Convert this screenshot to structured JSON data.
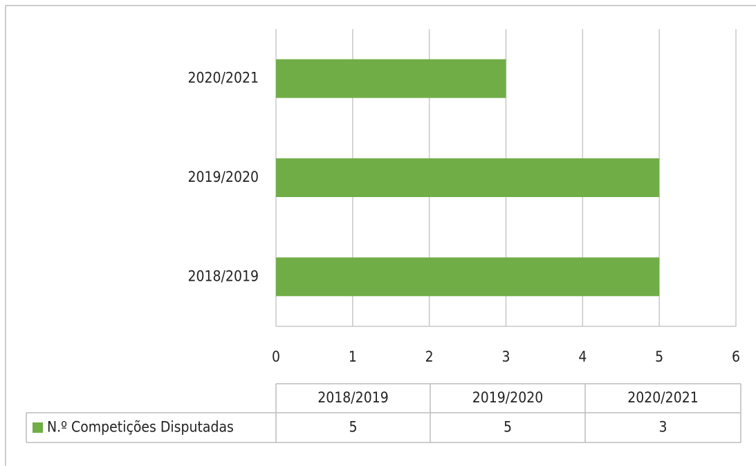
{
  "chart_data": {
    "type": "bar",
    "orientation": "horizontal",
    "categories": [
      "2018/2019",
      "2019/2020",
      "2020/2021"
    ],
    "series": [
      {
        "name": "N.º Competições Disputadas",
        "color": "#70ad47",
        "values": [
          5,
          5,
          3
        ]
      }
    ],
    "xlim": [
      0,
      6
    ],
    "xticks": [
      0,
      1,
      2,
      3,
      4,
      5,
      6
    ],
    "grid": true,
    "data_table": true
  }
}
